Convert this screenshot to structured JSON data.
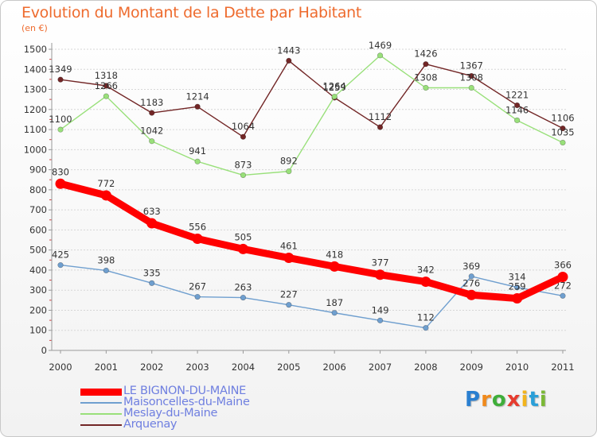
{
  "title": "Evolution du Montant de la Dette par Habitant",
  "subtitle": "(en €)",
  "logo": {
    "text": "Proxiti",
    "letters": [
      "P",
      "r",
      "o",
      "x",
      "i",
      "t",
      "i"
    ],
    "colors": [
      "#2a7fd0",
      "#f08a1c",
      "#3fae3a",
      "#e63b2e",
      "#f2b41c",
      "#2a9fd8",
      "#7ab835"
    ]
  },
  "chart_data": {
    "type": "line",
    "x": [
      "2000",
      "2001",
      "2002",
      "2003",
      "2004",
      "2005",
      "2006",
      "2007",
      "2008",
      "2009",
      "2010",
      "2011"
    ],
    "ylim": [
      0,
      1500
    ],
    "yticks": [
      0,
      100,
      200,
      300,
      400,
      500,
      600,
      700,
      800,
      900,
      1000,
      1100,
      1200,
      1300,
      1400,
      1500
    ],
    "grid": true,
    "legend_position": "bottom-left",
    "series": [
      {
        "name": "Arquenay",
        "color": "#722626",
        "values": [
          1349,
          1318,
          1183,
          1214,
          1064,
          1443,
          1259,
          1112,
          1426,
          1367,
          1221,
          1106
        ]
      },
      {
        "name": "Meslay-du-Maine",
        "color": "#99e07a",
        "values": [
          1100,
          1266,
          1042,
          941,
          873,
          892,
          1264,
          1469,
          1308,
          1308,
          1146,
          1035
        ]
      },
      {
        "name": "Maisoncelles-du-Maine",
        "color": "#6f9fcf",
        "values": [
          425,
          398,
          335,
          267,
          263,
          227,
          187,
          149,
          112,
          369,
          314,
          272
        ]
      },
      {
        "name": "LE BIGNON-DU-MAINE",
        "color": "#ff0000",
        "values": [
          830,
          772,
          633,
          556,
          505,
          461,
          418,
          377,
          342,
          276,
          259,
          366
        ]
      }
    ]
  }
}
